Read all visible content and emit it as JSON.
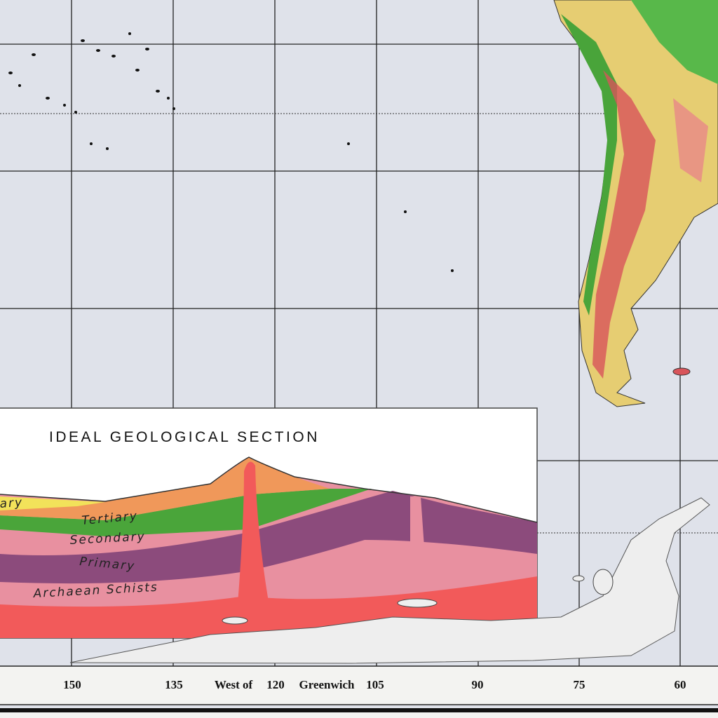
{
  "inset": {
    "title": "IDEAL GEOLOGICAL  SECTION",
    "layers": [
      "ary",
      "Tertiary",
      "Secondary",
      "Primary",
      "Archaean Schists"
    ]
  },
  "scale": {
    "labels": [
      "150",
      "135",
      "West of",
      "120",
      "Greenwich",
      "105",
      "90",
      "75",
      "60"
    ]
  }
}
